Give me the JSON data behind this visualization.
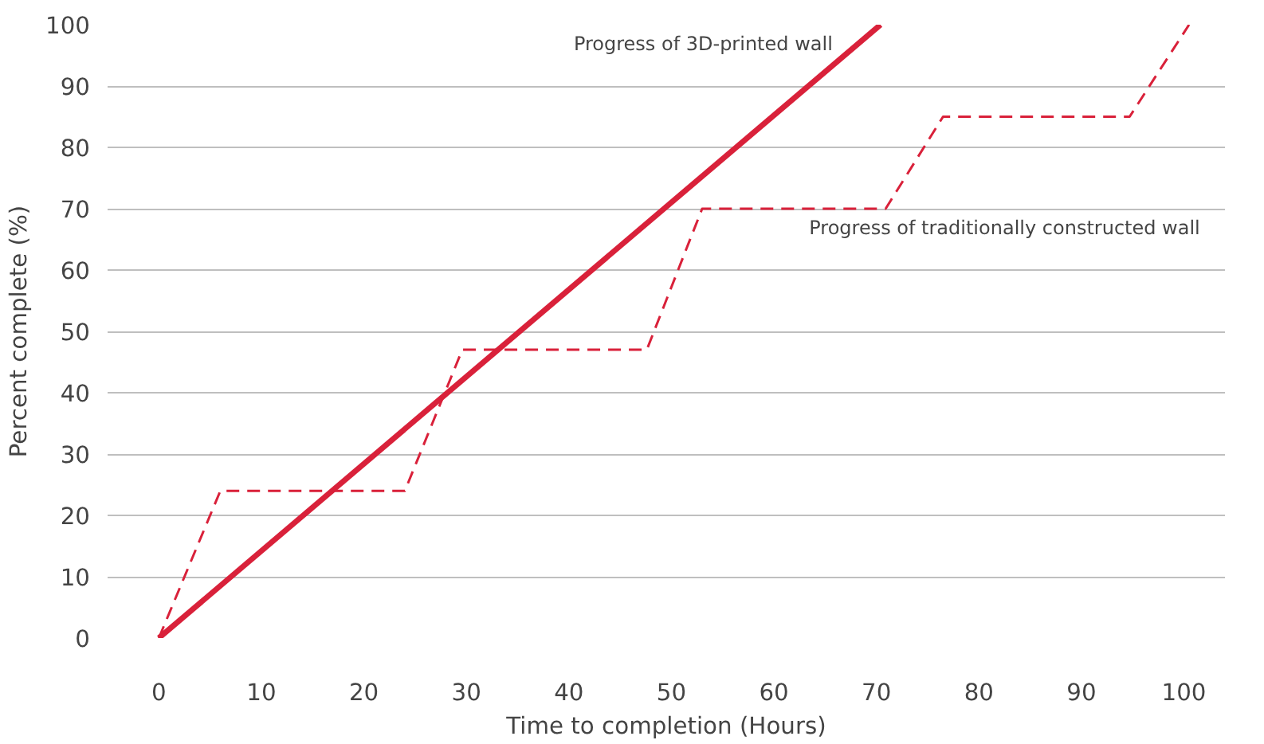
{
  "chart_data": {
    "type": "line",
    "xlabel": "Time to completion (Hours)",
    "ylabel": "Percent complete (%)",
    "series": [
      {
        "name": "Progress of 3D-printed wall",
        "color": "#d9213a",
        "x": [
          0,
          70.4
        ],
        "values": [
          0,
          100
        ],
        "line_style": "solid"
      },
      {
        "name": "Progress of traditionally constructed wall",
        "color": "#d9213a",
        "x": [
          0,
          6,
          24,
          29.6,
          47.6,
          53,
          70.9,
          76.5,
          94.7,
          100.5
        ],
        "values": [
          0,
          24,
          24,
          47,
          47,
          70,
          70,
          85,
          85,
          100
        ],
        "line_style": "dashed"
      }
    ],
    "xlim": [
      -5,
      104
    ],
    "ylim": [
      0,
      100
    ],
    "xticks": [
      0,
      10,
      20,
      30,
      40,
      50,
      60,
      70,
      80,
      90,
      100
    ],
    "yticks": [
      0,
      10,
      20,
      30,
      40,
      50,
      60,
      70,
      80,
      90,
      100
    ],
    "grid": "y",
    "legend": false,
    "marker": "none"
  }
}
